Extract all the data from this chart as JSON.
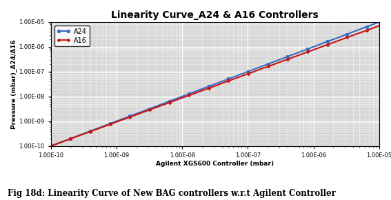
{
  "title": "Linearity Curve_A24 & A16 Controllers",
  "xlabel": "Agilent XGS600 Controller (mbar)",
  "ylabel": "Pressure (mbar)_A24/A16",
  "xmin": 1e-10,
  "xmax": 1e-05,
  "ymin": 1e-10,
  "ymax": 1e-05,
  "line_A24_color": "#3a6abf",
  "line_A16_color": "#cc1111",
  "line_A24_label": "A24",
  "line_A16_label": "A16",
  "caption": "Fig 18d: Linearity Curve of New BAG controllers w.r.t Agilent Controller",
  "plot_bg_color": "#d8d8d8",
  "title_fontsize": 10,
  "label_fontsize": 6.5,
  "caption_fontsize": 8.5,
  "legend_fontsize": 7,
  "tick_fontsize": 6,
  "grid_major_color": "#ffffff",
  "grid_minor_color": "#e8e8e8",
  "marker_A24": "s",
  "marker_A16": "D",
  "linewidth": 1.5,
  "markersize": 2.5
}
